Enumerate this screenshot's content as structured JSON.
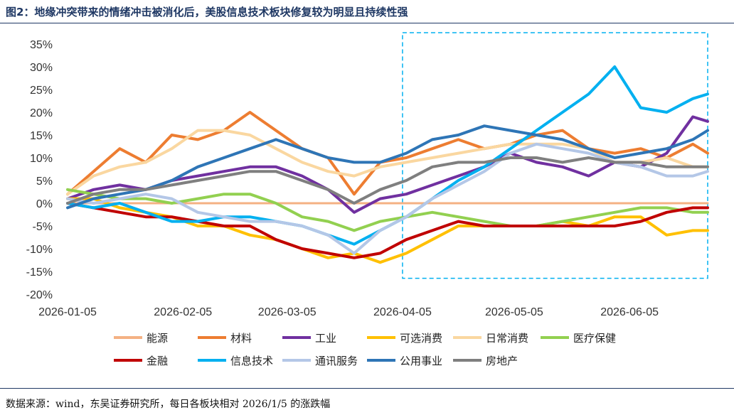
{
  "title": "图2：地缘冲突带来的情绪冲击被消化后，美股信息技术板块修复较为明显且持续性强",
  "source": "数据来源：wind，东吴证券研究所，每日各板块相对 2026/1/5 的涨跌幅",
  "chart_data": {
    "type": "line",
    "title": "图2：地缘冲突带来的情绪冲击被消化后，美股信息技术板块修复较为明显且持续性强",
    "xlabel": "",
    "ylabel": "",
    "x_tick_labels": [
      "2026-01-05",
      "2026-02-05",
      "2026-03-05",
      "2026-04-05",
      "2026-05-05",
      "2026-06-05"
    ],
    "y_tick_labels": [
      "35%",
      "30%",
      "25%",
      "20%",
      "15%",
      "10%",
      "5%",
      "0%",
      "-5%",
      "-10%",
      "-15%",
      "-20%"
    ],
    "ylim": [
      -20,
      35
    ],
    "grid": false,
    "legend_position": "bottom",
    "highlight_box": {
      "from": "2026-04-05",
      "to": "2026-06-26",
      "style": "dashed"
    },
    "x": [
      "2026-01-05",
      "2026-01-12",
      "2026-01-19",
      "2026-01-26",
      "2026-02-02",
      "2026-02-09",
      "2026-02-16",
      "2026-02-23",
      "2026-03-02",
      "2026-03-09",
      "2026-03-16",
      "2026-03-23",
      "2026-03-30",
      "2026-04-06",
      "2026-04-13",
      "2026-04-20",
      "2026-04-27",
      "2026-05-04",
      "2026-05-11",
      "2026-05-18",
      "2026-05-25",
      "2026-06-01",
      "2026-06-08",
      "2026-06-15",
      "2026-06-22",
      "2026-06-26"
    ],
    "series": [
      {
        "name": "能源",
        "color": "#f4b183",
        "values": [
          0,
          0,
          0,
          0,
          0,
          0,
          0,
          0,
          0,
          0,
          0,
          0,
          0,
          0,
          0,
          0,
          0,
          0,
          0,
          0,
          0,
          0,
          0,
          0,
          0,
          0
        ]
      },
      {
        "name": "材料",
        "color": "#ed7d31",
        "values": [
          2,
          7,
          12,
          9,
          15,
          14,
          16,
          20,
          16,
          12,
          10,
          2,
          9,
          10,
          12,
          14,
          12,
          13,
          15,
          16,
          12,
          11,
          12,
          10,
          13,
          11
        ]
      },
      {
        "name": "工业",
        "color": "#7030a0",
        "values": [
          1,
          3,
          4,
          3,
          5,
          6,
          7,
          8,
          8,
          6,
          3,
          -2,
          1,
          2,
          4,
          6,
          8,
          11,
          9,
          8,
          6,
          9,
          8,
          11,
          19,
          18
        ]
      },
      {
        "name": "可选消费",
        "color": "#ffc000",
        "values": [
          1,
          1,
          -1,
          -2,
          -3,
          -5,
          -5,
          -7,
          -8,
          -10,
          -12,
          -11,
          -13,
          -11,
          -8,
          -5,
          -5,
          -5,
          -5,
          -4,
          -5,
          -3,
          -3,
          -7,
          -6,
          -6
        ]
      },
      {
        "name": "日常消费",
        "color": "#fad7a0",
        "values": [
          2,
          6,
          8,
          9,
          12,
          16,
          16,
          15,
          12,
          9,
          7,
          6,
          8,
          9,
          10,
          11,
          12,
          13,
          13,
          13,
          12,
          9,
          9,
          10,
          8,
          8
        ]
      },
      {
        "name": "医疗保健",
        "color": "#92d050",
        "values": [
          3,
          2,
          1,
          1,
          0,
          1,
          2,
          2,
          0,
          -3,
          -4,
          -6,
          -4,
          -3,
          -2,
          -3,
          -4,
          -5,
          -5,
          -4,
          -3,
          -2,
          -1,
          -1,
          -2,
          -2
        ]
      },
      {
        "name": "金融",
        "color": "#c00000",
        "values": [
          0,
          -1,
          -2,
          -3,
          -3,
          -4,
          -5,
          -5,
          -8,
          -10,
          -11,
          -12,
          -11,
          -8,
          -6,
          -4,
          -5,
          -5,
          -5,
          -5,
          -5,
          -5,
          -4,
          -2,
          -1,
          -1
        ]
      },
      {
        "name": "信息技术",
        "color": "#00b0f0",
        "values": [
          0,
          -1,
          0,
          -2,
          -4,
          -4,
          -3,
          -3,
          -4,
          -5,
          -7,
          -9,
          -6,
          -3,
          1,
          5,
          8,
          12,
          16,
          20,
          24,
          30,
          21,
          20,
          23,
          24
        ]
      },
      {
        "name": "通讯服务",
        "color": "#b4c7e7",
        "values": [
          1,
          0,
          1,
          2,
          1,
          -2,
          -3,
          -4,
          -4,
          -5,
          -7,
          -11,
          -6,
          -3,
          1,
          4,
          7,
          11,
          13,
          12,
          11,
          9,
          8,
          6,
          6,
          7
        ]
      },
      {
        "name": "公用事业",
        "color": "#2e75b6",
        "values": [
          -1,
          1,
          2,
          3,
          5,
          8,
          10,
          12,
          14,
          12,
          10,
          9,
          9,
          11,
          14,
          15,
          17,
          16,
          15,
          14,
          12,
          10,
          11,
          12,
          14,
          16
        ]
      },
      {
        "name": "房地产",
        "color": "#7f7f7f",
        "values": [
          0,
          2,
          3,
          3,
          4,
          5,
          6,
          7,
          7,
          5,
          3,
          0,
          3,
          5,
          8,
          9,
          9,
          10,
          10,
          9,
          10,
          9,
          9,
          8,
          8,
          8
        ]
      }
    ]
  }
}
